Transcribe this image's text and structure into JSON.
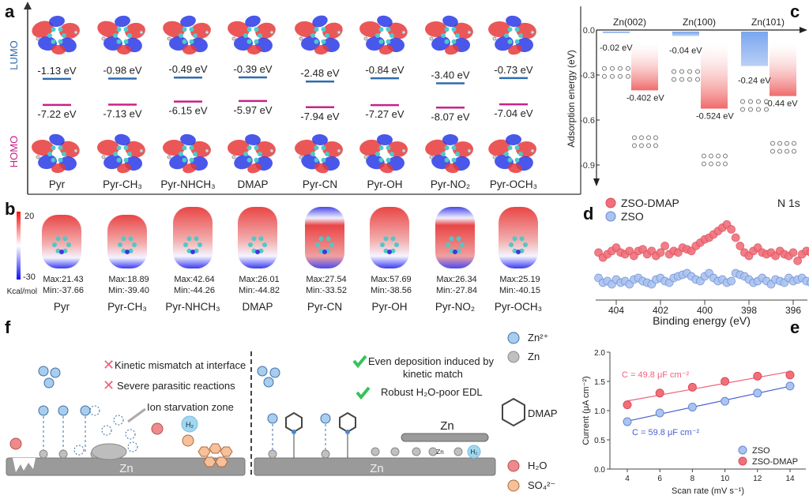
{
  "panel_labels": {
    "a": "a",
    "b": "b",
    "c": "c",
    "d": "d",
    "e": "e",
    "f": "f"
  },
  "panel_a": {
    "lumo_label": "LUMO",
    "homo_label": "HOMO",
    "lumo_color": "#2f6bb0",
    "homo_color": "#c8218a",
    "molecules": [
      {
        "name": "Pyr",
        "lumo": "-1.13 eV",
        "homo": "-7.22 eV"
      },
      {
        "name": "Pyr-CH₃",
        "lumo": "-0.98 eV",
        "homo": "-7.13 eV"
      },
      {
        "name": "Pyr-NHCH₃",
        "lumo": "-0.49 eV",
        "homo": "-6.15 eV"
      },
      {
        "name": "DMAP",
        "lumo": "-0.39 eV",
        "homo": "-5.97 eV"
      },
      {
        "name": "Pyr-CN",
        "lumo": "-2.48 eV",
        "homo": "-7.94 eV"
      },
      {
        "name": "Pyr-OH",
        "lumo": "-0.84 eV",
        "homo": "-7.27 eV"
      },
      {
        "name": "Pyr-NO₂",
        "lumo": "-3.40 eV",
        "homo": "-8.07 eV"
      },
      {
        "name": "Pyr-OCH₃",
        "lumo": "-0.73 eV",
        "homo": "-7.04 eV"
      }
    ]
  },
  "panel_b": {
    "colorbar_max": "20",
    "colorbar_min": "-30",
    "colorbar_unit": "Kcal/mol",
    "molecules": [
      {
        "name": "Pyr",
        "max": "Max:21.43",
        "min": "Min:-37.66"
      },
      {
        "name": "Pyr-CH₃",
        "max": "Max:18.89",
        "min": "Min:-39.40"
      },
      {
        "name": "Pyr-NHCH₃",
        "max": "Max:42.64",
        "min": "Min:-44.26"
      },
      {
        "name": "DMAP",
        "max": "Max:26.01",
        "min": "Min:-44.82"
      },
      {
        "name": "Pyr-CN",
        "max": "Max:27.54",
        "min": "Min:-33.52"
      },
      {
        "name": "Pyr-OH",
        "max": "Max:57.69",
        "min": "Min:-38.56"
      },
      {
        "name": "Pyr-NO₂",
        "max": "Max:26.34",
        "min": "Min:-27.84"
      },
      {
        "name": "Pyr-OCH₃",
        "max": "Max:25.19",
        "min": "Min:-40.15"
      }
    ]
  },
  "chart_data": [
    {
      "panel": "c",
      "type": "bar",
      "ylabel": "Adsorption energy (eV)",
      "ylim": [
        -1.0,
        0.0
      ],
      "yticks": [
        "0.0",
        "-0.3",
        "-0.6",
        "-0.9"
      ],
      "categories": [
        "Zn(002)",
        "Zn(100)",
        "Zn(101)"
      ],
      "series": [
        {
          "values": [
            -0.02,
            -0.04,
            -0.24
          ],
          "labels": [
            "-0.02 eV",
            "-0.04 eV",
            "-0.24 eV"
          ],
          "color": "#7aa6ee"
        },
        {
          "values": [
            -0.402,
            -0.524,
            -0.44
          ],
          "labels": [
            "-0.402 eV",
            "-0.524 eV",
            "-0.44 eV"
          ],
          "color": "#f06a6a"
        }
      ]
    },
    {
      "panel": "d",
      "type": "scatter",
      "xlabel": "Binding energy (eV)",
      "annotation": "N 1s",
      "xlim": [
        404.9,
        395.1
      ],
      "xticks": [
        "404",
        "402",
        "400",
        "398",
        "396"
      ],
      "legend": "top-left",
      "x": [
        404.8,
        404.6,
        404.4,
        404.2,
        404.0,
        403.8,
        403.6,
        403.4,
        403.2,
        403.0,
        402.8,
        402.6,
        402.4,
        402.2,
        402.0,
        401.8,
        401.6,
        401.4,
        401.2,
        401.0,
        400.8,
        400.6,
        400.4,
        400.2,
        400.0,
        399.8,
        399.6,
        399.4,
        399.2,
        399.0,
        398.8,
        398.6,
        398.4,
        398.2,
        398.0,
        397.8,
        397.6,
        397.4,
        397.2,
        397.0,
        396.8,
        396.6,
        396.4,
        396.2,
        396.0,
        395.8,
        395.6,
        395.4,
        395.2
      ],
      "series": [
        {
          "name": "ZSO-DMAP",
          "color": "#f0707a",
          "values": [
            1.05,
            0.9,
            1.0,
            1.1,
            1.2,
            1.05,
            1.0,
            1.1,
            0.95,
            1.1,
            1.15,
            1.0,
            1.1,
            0.95,
            1.05,
            1.25,
            1.0,
            1.1,
            1.05,
            1.2,
            1.15,
            1.1,
            1.25,
            1.35,
            1.45,
            1.5,
            1.6,
            1.7,
            1.8,
            1.9,
            1.75,
            1.5,
            1.25,
            1.05,
            0.95,
            1.1,
            1.2,
            1.05,
            1.0,
            1.05,
            0.95,
            1.1,
            1.0,
            0.95,
            1.05,
            0.8,
            1.0,
            1.1,
            1.05
          ]
        },
        {
          "name": "ZSO",
          "color": "#a9c4f0",
          "values": [
            0.2,
            0.05,
            0.1,
            0.0,
            0.15,
            0.05,
            0.1,
            0.0,
            0.15,
            0.2,
            0.1,
            0.05,
            0.0,
            0.15,
            0.2,
            0.1,
            0.05,
            0.2,
            0.25,
            0.3,
            0.35,
            0.25,
            0.15,
            0.1,
            0.25,
            0.35,
            0.2,
            0.1,
            0.15,
            0.05,
            0.1,
            0.35,
            0.3,
            0.25,
            0.15,
            0.05,
            0.1,
            0.2,
            0.1,
            0.0,
            0.15,
            0.1,
            0.05,
            0.2,
            0.1,
            0.15,
            0.2,
            0.1,
            0.05
          ]
        }
      ]
    },
    {
      "panel": "e",
      "type": "scatter",
      "xlabel": "Scan rate (mV s⁻¹)",
      "ylabel": "Current (μA cm⁻²)",
      "xlim": [
        3,
        15
      ],
      "ylim": [
        0,
        2.0
      ],
      "xticks": [
        "4",
        "6",
        "8",
        "10",
        "12",
        "14"
      ],
      "yticks": [
        "0.0",
        "0.5",
        "1.0",
        "1.5",
        "2.0"
      ],
      "legend": "bottom-right",
      "x": [
        4,
        6,
        8,
        10,
        12,
        14
      ],
      "series": [
        {
          "name": "ZSO",
          "color": "#a9c4f0",
          "line": "#4a5fd0",
          "values": [
            0.81,
            0.96,
            1.06,
            1.16,
            1.3,
            1.42
          ],
          "fit_label": "C = 59.8 μF cm⁻²"
        },
        {
          "name": "ZSO-DMAP",
          "color": "#f0707a",
          "line": "#f0607a",
          "values": [
            1.1,
            1.3,
            1.4,
            1.5,
            1.59,
            1.61
          ],
          "fit_label": "C = 49.8 μF cm⁻²"
        }
      ]
    }
  ],
  "panel_f": {
    "left_notes": [
      "Kinetic mismatch at interface",
      "Severe parasitic reactions"
    ],
    "starvation": "Ion starvation zone",
    "h2": "H₂",
    "zn": "Zn",
    "right_notes": [
      "Even deposition induced by",
      "kinetic match",
      "Robust H₂O-poor EDL"
    ],
    "zn_layer": "Zn",
    "zn_small": "Zn",
    "legend": [
      "Zn²⁺",
      "Zn",
      "DMAP",
      "H₂O",
      "SO₄²⁻"
    ]
  }
}
